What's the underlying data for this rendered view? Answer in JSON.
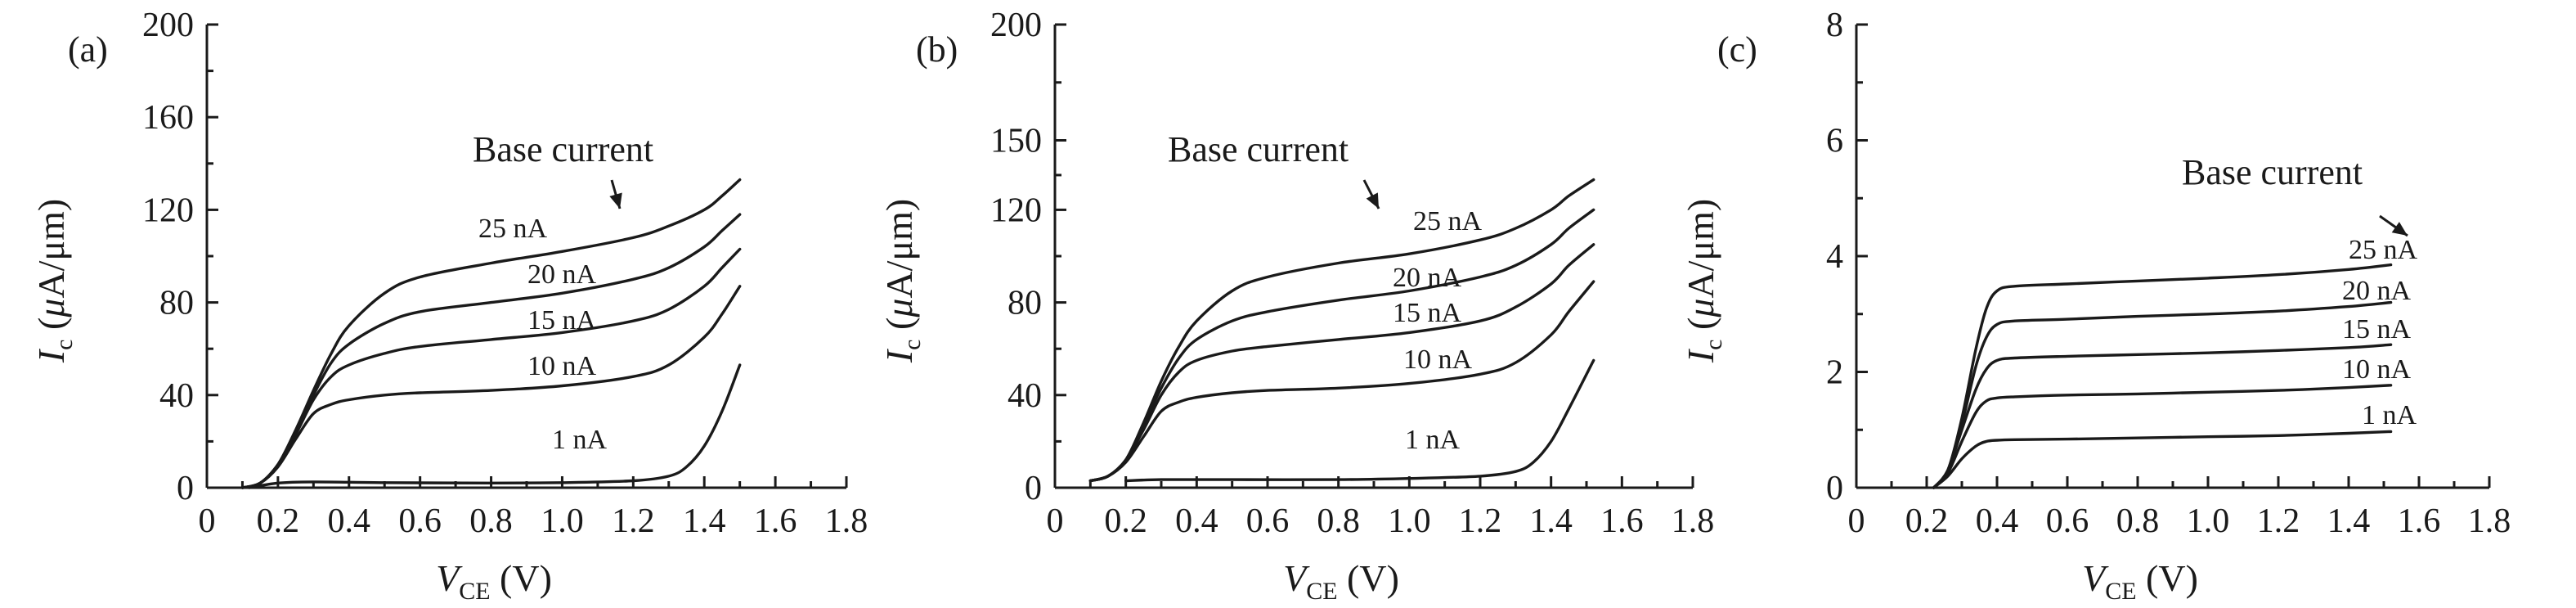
{
  "chart_data": [
    {
      "type": "line",
      "panel_label": "(a)",
      "xlabel": {
        "main": "V",
        "sub": "CE",
        "unit": " (V)"
      },
      "ylabel": {
        "main": "I",
        "sub": "c",
        "unit_pre": " (",
        "mu": "μ",
        "unit_post": "A/μm)"
      },
      "xlim": [
        0,
        1.8
      ],
      "ylim": [
        0,
        200
      ],
      "xticks": [
        0,
        0.2,
        0.4,
        0.6,
        0.8,
        1.0,
        1.2,
        1.4,
        1.6,
        1.8
      ],
      "xtick_labels": [
        "0",
        "0.2",
        "0.4",
        "0.6",
        "0.8",
        "1.0",
        "1.2",
        "1.4",
        "1.6",
        "1.8"
      ],
      "yticks": [
        0,
        40,
        80,
        120,
        160,
        200
      ],
      "ytick_labels": [
        "0",
        "40",
        "80",
        "120",
        "160",
        "200"
      ],
      "annotation": "Base current",
      "series": [
        {
          "name": "25 nA",
          "x": [
            0.1,
            0.15,
            0.2,
            0.25,
            0.3,
            0.35,
            0.4,
            0.5,
            0.6,
            0.8,
            1.0,
            1.2,
            1.3,
            1.4,
            1.45,
            1.5
          ],
          "y": [
            0,
            2,
            10,
            25,
            42,
            58,
            70,
            84,
            91,
            97,
            102,
            108,
            113,
            120,
            126,
            133
          ]
        },
        {
          "name": "20 nA",
          "x": [
            0.1,
            0.15,
            0.2,
            0.25,
            0.3,
            0.35,
            0.4,
            0.5,
            0.6,
            0.8,
            1.0,
            1.2,
            1.3,
            1.4,
            1.45,
            1.5
          ],
          "y": [
            0,
            2,
            10,
            24,
            40,
            54,
            62,
            71,
            76,
            80,
            84,
            90,
            95,
            104,
            111,
            118
          ]
        },
        {
          "name": "15 nA",
          "x": [
            0.1,
            0.15,
            0.2,
            0.25,
            0.3,
            0.35,
            0.4,
            0.5,
            0.6,
            0.8,
            1.0,
            1.2,
            1.3,
            1.4,
            1.45,
            1.5
          ],
          "y": [
            0,
            2,
            10,
            23,
            38,
            48,
            53,
            58,
            61,
            64,
            67,
            72,
            77,
            87,
            95,
            103
          ]
        },
        {
          "name": "10 nA",
          "x": [
            0.1,
            0.15,
            0.2,
            0.25,
            0.3,
            0.35,
            0.4,
            0.5,
            0.6,
            0.8,
            1.0,
            1.2,
            1.3,
            1.4,
            1.45,
            1.5
          ],
          "y": [
            0,
            2,
            9,
            21,
            32,
            36,
            38,
            40,
            41,
            42,
            44,
            48,
            53,
            65,
            75,
            87
          ]
        },
        {
          "name": "1 nA",
          "x": [
            0.12,
            0.2,
            0.3,
            0.5,
            0.8,
            1.0,
            1.2,
            1.3,
            1.35,
            1.4,
            1.45,
            1.5
          ],
          "y": [
            0,
            2,
            2.5,
            2.2,
            2,
            2.2,
            3,
            5,
            9,
            18,
            33,
            53
          ]
        }
      ]
    },
    {
      "type": "line",
      "panel_label": "(b)",
      "xlabel": {
        "main": "V",
        "sub": "CE",
        "unit": " (V)"
      },
      "ylabel": {
        "main": "I",
        "sub": "c",
        "unit_pre": " (",
        "mu": "μ",
        "unit_post": "A/μm)"
      },
      "xlim": [
        0,
        1.8
      ],
      "ylim": [
        0,
        200
      ],
      "xticks": [
        0,
        0.2,
        0.4,
        0.6,
        0.8,
        1.0,
        1.2,
        1.4,
        1.6,
        1.8
      ],
      "xtick_labels": [
        "0",
        "0.2",
        "0.4",
        "0.6",
        "0.8",
        "1.0",
        "1.2",
        "1.4",
        "1.6",
        "1.8"
      ],
      "yticks": [
        0,
        40,
        80,
        120,
        150,
        200
      ],
      "ytick_labels": [
        "0",
        "40",
        "80",
        "120",
        "150",
        "200"
      ],
      "annotation": "Base current",
      "series": [
        {
          "name": "25 nA",
          "x": [
            0.1,
            0.15,
            0.2,
            0.25,
            0.3,
            0.35,
            0.4,
            0.5,
            0.6,
            0.8,
            1.0,
            1.2,
            1.3,
            1.4,
            1.45,
            1.52
          ],
          "y": [
            3,
            5,
            12,
            28,
            46,
            61,
            72,
            85,
            91,
            97,
            101,
            107,
            112,
            120,
            126,
            133
          ]
        },
        {
          "name": "20 nA",
          "x": [
            0.1,
            0.15,
            0.2,
            0.25,
            0.3,
            0.35,
            0.4,
            0.5,
            0.6,
            0.8,
            1.0,
            1.2,
            1.3,
            1.4,
            1.45,
            1.52
          ],
          "y": [
            3,
            5,
            12,
            27,
            43,
            56,
            64,
            72,
            76,
            81,
            85,
            91,
            96,
            105,
            112,
            120
          ]
        },
        {
          "name": "15 nA",
          "x": [
            0.1,
            0.15,
            0.2,
            0.25,
            0.3,
            0.35,
            0.4,
            0.5,
            0.6,
            0.8,
            1.0,
            1.2,
            1.3,
            1.4,
            1.45,
            1.52
          ],
          "y": [
            3,
            5,
            12,
            25,
            40,
            50,
            55,
            59,
            61,
            64,
            67,
            72,
            78,
            88,
            96,
            105
          ]
        },
        {
          "name": "10 nA",
          "x": [
            0.1,
            0.15,
            0.2,
            0.25,
            0.3,
            0.35,
            0.4,
            0.5,
            0.6,
            0.8,
            1.0,
            1.2,
            1.3,
            1.4,
            1.45,
            1.52
          ],
          "y": [
            3,
            5,
            11,
            22,
            33,
            37,
            39,
            41,
            42,
            43,
            45,
            49,
            54,
            66,
            76,
            89
          ]
        },
        {
          "name": "1 nA",
          "x": [
            0.2,
            0.3,
            0.5,
            0.8,
            1.0,
            1.2,
            1.3,
            1.35,
            1.4,
            1.45,
            1.52
          ],
          "y": [
            3,
            3.5,
            3.5,
            3.5,
            4,
            5,
            7,
            11,
            20,
            34,
            55
          ]
        }
      ]
    },
    {
      "type": "line",
      "panel_label": "(c)",
      "xlabel": {
        "main": "V",
        "sub": "CE",
        "unit": " (V)"
      },
      "ylabel": {
        "main": "I",
        "sub": "c",
        "unit_pre": " (",
        "mu": "μ",
        "unit_post": "A/μm)"
      },
      "xlim": [
        0,
        1.8
      ],
      "ylim": [
        0,
        8
      ],
      "xticks": [
        0,
        0.2,
        0.4,
        0.6,
        0.8,
        1.0,
        1.2,
        1.4,
        1.6,
        1.8
      ],
      "xtick_labels": [
        "0",
        "0.2",
        "0.4",
        "0.6",
        "0.8",
        "1.0",
        "1.2",
        "1.4",
        "1.6",
        "1.8"
      ],
      "yticks": [
        0,
        2,
        4,
        6,
        8
      ],
      "ytick_labels": [
        "0",
        "2",
        "4",
        "6",
        "8"
      ],
      "annotation": "Base current",
      "series": [
        {
          "name": "25 nA",
          "x": [
            0.22,
            0.26,
            0.3,
            0.34,
            0.37,
            0.4,
            0.45,
            0.6,
            0.8,
            1.0,
            1.2,
            1.4,
            1.52
          ],
          "y": [
            0,
            0.3,
            1.2,
            2.4,
            3.1,
            3.4,
            3.48,
            3.52,
            3.57,
            3.62,
            3.68,
            3.77,
            3.85
          ]
        },
        {
          "name": "20 nA",
          "x": [
            0.22,
            0.26,
            0.3,
            0.34,
            0.37,
            0.4,
            0.45,
            0.6,
            0.8,
            1.0,
            1.2,
            1.4,
            1.52
          ],
          "y": [
            0,
            0.3,
            1.1,
            2.1,
            2.6,
            2.82,
            2.88,
            2.91,
            2.96,
            3.0,
            3.05,
            3.13,
            3.2
          ]
        },
        {
          "name": "15 nA",
          "x": [
            0.22,
            0.26,
            0.3,
            0.34,
            0.37,
            0.4,
            0.45,
            0.6,
            0.8,
            1.0,
            1.2,
            1.4,
            1.52
          ],
          "y": [
            0,
            0.3,
            1.0,
            1.7,
            2.05,
            2.2,
            2.24,
            2.27,
            2.3,
            2.33,
            2.37,
            2.42,
            2.47
          ]
        },
        {
          "name": "10 nA",
          "x": [
            0.22,
            0.26,
            0.3,
            0.34,
            0.37,
            0.4,
            0.45,
            0.6,
            0.8,
            1.0,
            1.2,
            1.4,
            1.52
          ],
          "y": [
            0,
            0.25,
            0.8,
            1.3,
            1.5,
            1.55,
            1.57,
            1.6,
            1.62,
            1.65,
            1.68,
            1.73,
            1.77
          ]
        },
        {
          "name": "1 nA",
          "x": [
            0.22,
            0.26,
            0.3,
            0.34,
            0.37,
            0.4,
            0.45,
            0.6,
            0.8,
            1.0,
            1.2,
            1.4,
            1.52
          ],
          "y": [
            0,
            0.2,
            0.5,
            0.72,
            0.8,
            0.82,
            0.83,
            0.84,
            0.86,
            0.88,
            0.9,
            0.94,
            0.97
          ]
        }
      ]
    }
  ]
}
